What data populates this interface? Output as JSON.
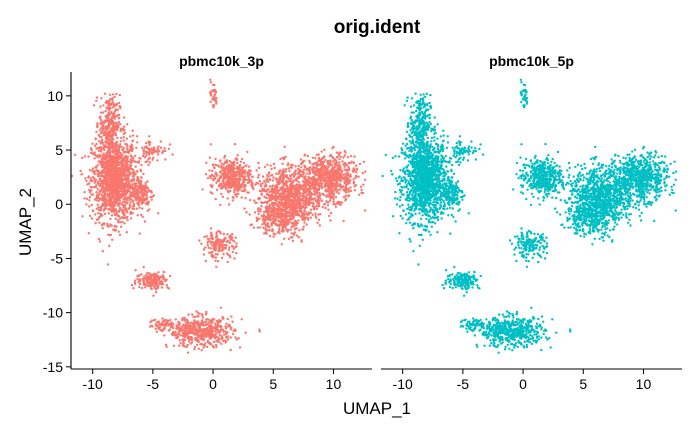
{
  "chart_data": {
    "type": "scatter",
    "title": "orig.ident",
    "xlabel": "UMAP_1",
    "ylabel": "UMAP_2",
    "xlim": [
      -11.8,
      13.2
    ],
    "ylim": [
      -15.2,
      12.2
    ],
    "xticks": [
      -10,
      -5,
      0,
      5,
      10
    ],
    "yticks": [
      10,
      5,
      0,
      -5,
      -10,
      -15
    ],
    "grid": false,
    "legend": "none",
    "facets": [
      {
        "label": "pbmc10k_3p",
        "color": "#F8766D"
      },
      {
        "label": "pbmc10k_5p",
        "color": "#00BFC4"
      }
    ],
    "clusters": [
      {
        "cx": -8.2,
        "cy": 2.3,
        "sx": 1.1,
        "sy": 2.3,
        "n": 1400
      },
      {
        "cx": -8.6,
        "cy": 7.5,
        "sx": 0.5,
        "sy": 1.5,
        "n": 260
      },
      {
        "cx": -6.0,
        "cy": 1.0,
        "sx": 0.6,
        "sy": 1.0,
        "n": 160
      },
      {
        "cx": -5.0,
        "cy": 5.0,
        "sx": 0.7,
        "sy": 0.6,
        "n": 70
      },
      {
        "cx": 0.0,
        "cy": 10.0,
        "sx": 0.2,
        "sy": 0.8,
        "n": 30
      },
      {
        "cx": 1.5,
        "cy": 2.5,
        "sx": 1.0,
        "sy": 1.0,
        "n": 420
      },
      {
        "cx": 6.5,
        "cy": 0.8,
        "sx": 1.6,
        "sy": 1.6,
        "n": 900
      },
      {
        "cx": 9.8,
        "cy": 2.5,
        "sx": 1.3,
        "sy": 1.2,
        "n": 600
      },
      {
        "cx": 5.5,
        "cy": -1.2,
        "sx": 1.2,
        "sy": 1.0,
        "n": 300
      },
      {
        "cx": 0.5,
        "cy": -3.8,
        "sx": 0.8,
        "sy": 0.7,
        "n": 160
      },
      {
        "cx": -5.0,
        "cy": -7.0,
        "sx": 0.8,
        "sy": 0.5,
        "n": 170
      },
      {
        "cx": -1.0,
        "cy": -11.8,
        "sx": 1.6,
        "sy": 0.8,
        "n": 500
      },
      {
        "cx": -3.8,
        "cy": -11.1,
        "sx": 1.0,
        "sy": 0.3,
        "n": 60
      }
    ]
  }
}
